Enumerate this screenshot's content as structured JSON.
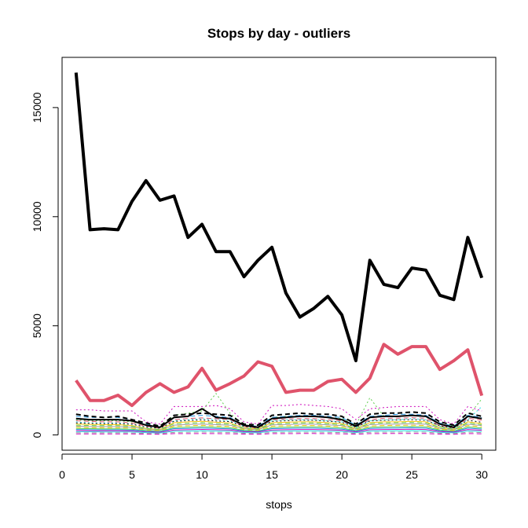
{
  "chart_data": {
    "type": "line",
    "title": "Stops by day - outliers",
    "xlabel": "stops",
    "ylabel": "",
    "xlim": [
      0,
      31
    ],
    "ylim": [
      0,
      17000
    ],
    "x_ticks": [
      0,
      5,
      10,
      15,
      20,
      25,
      30
    ],
    "y_ticks": [
      0,
      5000,
      10000,
      15000
    ],
    "x": [
      1,
      2,
      3,
      4,
      5,
      6,
      7,
      8,
      9,
      10,
      11,
      12,
      13,
      14,
      15,
      16,
      17,
      18,
      19,
      20,
      21,
      22,
      23,
      24,
      25,
      26,
      27,
      28,
      29,
      30
    ],
    "series": [
      {
        "color": "#000000",
        "line_style": "solid",
        "width": "thick",
        "values": [
          16600,
          9400,
          9450,
          9400,
          10700,
          11650,
          10750,
          10950,
          9050,
          9650,
          8400,
          8400,
          7250,
          8000,
          8600,
          6500,
          5400,
          5800,
          6350,
          5500,
          3400,
          8000,
          6900,
          6750,
          7650,
          7550,
          6400,
          6200,
          9050,
          7200
        ]
      },
      {
        "color": "#DF536B",
        "line_style": "solid",
        "width": "thick",
        "values": [
          2500,
          1580,
          1580,
          1820,
          1350,
          1950,
          2350,
          1950,
          2200,
          3050,
          2050,
          2350,
          2700,
          3350,
          3150,
          1950,
          2050,
          2050,
          2450,
          2550,
          1950,
          2600,
          4150,
          3700,
          4050,
          4050,
          3000,
          3400,
          3900,
          1800
        ]
      },
      {
        "color": "#CD0BBC",
        "line_style": "dotted",
        "width": "thin",
        "values": [
          1150,
          1150,
          1100,
          1100,
          1100,
          600,
          500,
          1300,
          1300,
          1300,
          1350,
          1200,
          600,
          500,
          1350,
          1350,
          1400,
          1350,
          1300,
          1200,
          700,
          1200,
          1250,
          1300,
          1300,
          1300,
          700,
          500,
          1300,
          1100
        ]
      },
      {
        "color": "#000000",
        "line_style": "dashed",
        "width": "medium",
        "values": [
          950,
          850,
          800,
          850,
          700,
          550,
          400,
          900,
          950,
          1000,
          950,
          900,
          500,
          450,
          900,
          950,
          1000,
          950,
          950,
          850,
          500,
          950,
          1000,
          1000,
          1050,
          1000,
          600,
          450,
          1000,
          850
        ]
      },
      {
        "color": "#61D04F",
        "line_style": "dotted",
        "width": "thin",
        "values": [
          700,
          650,
          650,
          650,
          600,
          450,
          350,
          900,
          1000,
          1100,
          1900,
          1000,
          450,
          350,
          800,
          850,
          850,
          850,
          800,
          750,
          450,
          1700,
          850,
          850,
          900,
          850,
          500,
          400,
          850,
          1650
        ]
      },
      {
        "color": "#2297E6",
        "line_style": "dashed",
        "width": "thin",
        "values": [
          850,
          800,
          800,
          800,
          700,
          500,
          400,
          800,
          850,
          900,
          850,
          800,
          450,
          400,
          800,
          850,
          900,
          900,
          850,
          800,
          450,
          850,
          900,
          950,
          950,
          900,
          550,
          400,
          900,
          800
        ]
      },
      {
        "color": "#28E2E5",
        "line_style": "dotted",
        "width": "thin",
        "values": [
          600,
          550,
          550,
          550,
          500,
          350,
          300,
          650,
          700,
          750,
          700,
          650,
          400,
          300,
          650,
          700,
          700,
          700,
          650,
          600,
          350,
          650,
          700,
          700,
          750,
          700,
          400,
          300,
          700,
          1300
        ]
      },
      {
        "color": "#F5C710",
        "line_style": "solid",
        "width": "thin",
        "values": [
          500,
          480,
          470,
          470,
          430,
          300,
          250,
          560,
          600,
          620,
          580,
          550,
          320,
          280,
          560,
          580,
          600,
          600,
          560,
          520,
          300,
          560,
          600,
          600,
          620,
          600,
          350,
          260,
          600,
          520
        ]
      },
      {
        "color": "#9E9E9E",
        "line_style": "solid",
        "width": "thin",
        "values": [
          400,
          380,
          380,
          380,
          350,
          260,
          220,
          450,
          480,
          500,
          470,
          450,
          280,
          240,
          460,
          480,
          490,
          490,
          460,
          430,
          260,
          470,
          490,
          500,
          510,
          490,
          300,
          230,
          490,
          430
        ]
      },
      {
        "color": "#000000",
        "line_style": "solid",
        "width": "medium",
        "values": [
          750,
          700,
          700,
          700,
          650,
          450,
          350,
          800,
          850,
          1200,
          800,
          750,
          450,
          350,
          750,
          800,
          850,
          850,
          800,
          700,
          400,
          800,
          850,
          850,
          900,
          850,
          500,
          350,
          850,
          750
        ]
      },
      {
        "color": "#DF536B",
        "line_style": "dashed",
        "width": "thin",
        "values": [
          650,
          620,
          600,
          600,
          550,
          400,
          300,
          700,
          750,
          780,
          740,
          700,
          380,
          320,
          700,
          730,
          750,
          750,
          700,
          650,
          380,
          700,
          760,
          770,
          790,
          760,
          420,
          320,
          760,
          680
        ]
      },
      {
        "color": "#61D04F",
        "line_style": "solid",
        "width": "thin",
        "values": [
          300,
          290,
          280,
          280,
          260,
          200,
          170,
          340,
          360,
          380,
          350,
          330,
          210,
          180,
          340,
          360,
          370,
          370,
          350,
          320,
          200,
          350,
          370,
          380,
          390,
          370,
          230,
          180,
          370,
          320
        ]
      },
      {
        "color": "#2297E6",
        "line_style": "solid",
        "width": "thin",
        "values": [
          250,
          240,
          235,
          235,
          220,
          170,
          150,
          290,
          300,
          320,
          300,
          280,
          180,
          160,
          290,
          300,
          310,
          310,
          290,
          270,
          170,
          300,
          310,
          320,
          330,
          310,
          190,
          150,
          310,
          270
        ]
      },
      {
        "color": "#CD0BBC",
        "line_style": "solid",
        "width": "thin",
        "values": [
          200,
          195,
          190,
          190,
          180,
          140,
          120,
          230,
          240,
          255,
          240,
          225,
          145,
          130,
          230,
          240,
          250,
          250,
          235,
          215,
          140,
          240,
          250,
          255,
          265,
          250,
          155,
          125,
          250,
          215
        ]
      },
      {
        "color": "#28E2E5",
        "line_style": "solid",
        "width": "thin",
        "values": [
          150,
          145,
          140,
          140,
          135,
          105,
          90,
          170,
          180,
          190,
          180,
          170,
          110,
          95,
          170,
          180,
          185,
          185,
          175,
          160,
          105,
          180,
          185,
          190,
          195,
          185,
          115,
          95,
          185,
          160
        ]
      },
      {
        "color": "#F5C710",
        "line_style": "dashed",
        "width": "thin",
        "values": [
          350,
          335,
          330,
          330,
          310,
          230,
          195,
          400,
          420,
          440,
          410,
          390,
          250,
          210,
          400,
          420,
          430,
          430,
          405,
          375,
          230,
          410,
          430,
          440,
          450,
          430,
          270,
          205,
          430,
          375
        ]
      },
      {
        "color": "#9E9E9E",
        "line_style": "dashed",
        "width": "thin",
        "values": [
          100,
          97,
          95,
          95,
          90,
          70,
          60,
          115,
          120,
          127,
          120,
          113,
          73,
          63,
          115,
          120,
          124,
          124,
          117,
          107,
          70,
          120,
          124,
          127,
          130,
          124,
          77,
          62,
          124,
          107
        ]
      },
      {
        "color": "#000000",
        "line_style": "dotted",
        "width": "thin",
        "values": [
          550,
          530,
          520,
          520,
          490,
          360,
          310,
          620,
          660,
          690,
          640,
          610,
          390,
          330,
          620,
          650,
          670,
          670,
          630,
          580,
          360,
          640,
          670,
          690,
          700,
          670,
          420,
          320,
          670,
          580
        ]
      },
      {
        "color": "#61D04F",
        "line_style": "dashed",
        "width": "thin",
        "values": [
          450,
          430,
          425,
          425,
          400,
          295,
          250,
          510,
          540,
          565,
          525,
          500,
          320,
          270,
          510,
          530,
          550,
          550,
          515,
          475,
          295,
          525,
          550,
          565,
          575,
          550,
          345,
          265,
          550,
          475
        ]
      },
      {
        "color": "#CD0BBC",
        "line_style": "dashed",
        "width": "thin",
        "values": [
          50,
          48,
          47,
          47,
          45,
          35,
          30,
          58,
          60,
          63,
          60,
          57,
          37,
          32,
          58,
          60,
          62,
          62,
          59,
          54,
          35,
          60,
          62,
          63,
          65,
          62,
          38,
          31,
          62,
          54
        ]
      }
    ]
  }
}
